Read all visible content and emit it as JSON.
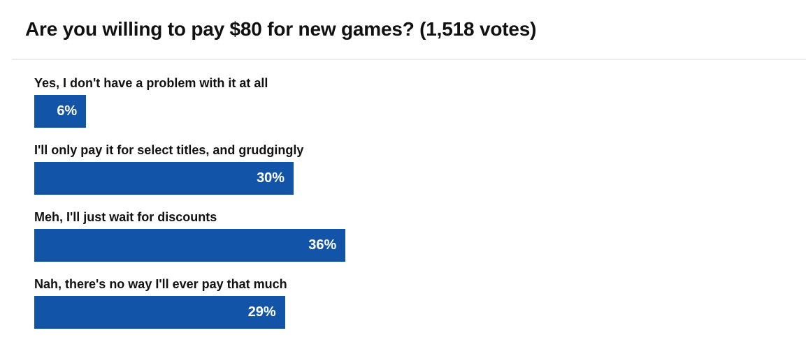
{
  "title": "Are you willing to pay $80 for new games? (1,518 votes)",
  "poll": {
    "total_votes_label": "1,518 votes",
    "options": [
      {
        "label": "Yes, I don't have a problem with it at all",
        "percent": 6,
        "percent_label": "6%"
      },
      {
        "label": "I'll only pay it for select titles, and grudgingly",
        "percent": 30,
        "percent_label": "30%"
      },
      {
        "label": "Meh, I'll just wait for discounts",
        "percent": 36,
        "percent_label": "36%"
      },
      {
        "label": "Nah, there's no way I'll ever pay that much",
        "percent": 29,
        "percent_label": "29%"
      }
    ]
  },
  "colors": {
    "bar": "#1254a8",
    "title_text": "#111111",
    "option_label_text": "#111111",
    "bar_value_text": "#ffffff",
    "divider": "#ececec",
    "background": "#ffffff"
  },
  "chart_data": {
    "type": "bar",
    "orientation": "horizontal",
    "title": "Are you willing to pay $80 for new games? (1,518 votes)",
    "total_votes": 1518,
    "categories": [
      "Yes, I don't have a problem with it at all",
      "I'll only pay it for select titles, and grudgingly",
      "Meh, I'll just wait for discounts",
      "Nah, there's no way I'll ever pay that much"
    ],
    "values": [
      6,
      30,
      36,
      29
    ],
    "data_labels": [
      "6%",
      "30%",
      "36%",
      "29%"
    ],
    "value_unit": "percent",
    "xlim": [
      0,
      100
    ],
    "grid": false,
    "legend": false,
    "bar_color": "#1254a8"
  }
}
